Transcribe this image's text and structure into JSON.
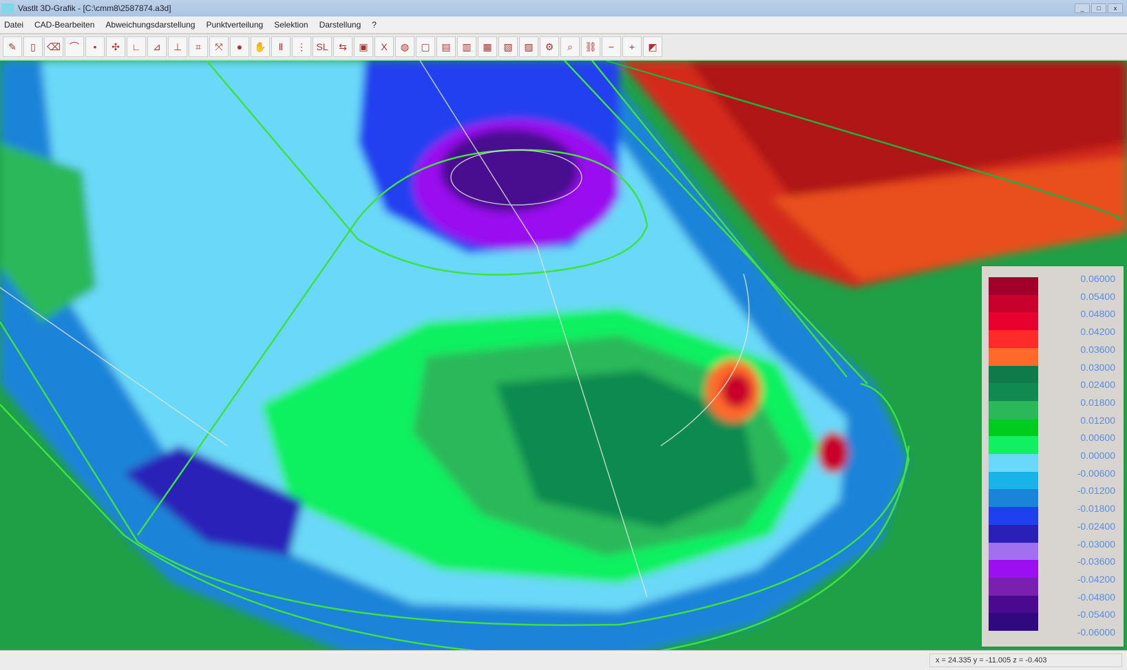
{
  "window": {
    "title": "Vastlt 3D-Grafik - [C:\\cmm8\\2587874.a3d]"
  },
  "menu": [
    "Datei",
    "CAD-Bearbeiten",
    "Abweichungsdarstellung",
    "Punktverteilung",
    "Selektion",
    "Darstellung",
    "?"
  ],
  "toolbar": [
    {
      "icon": "pen-icon",
      "glyph": "✎"
    },
    {
      "icon": "cylinder-icon",
      "glyph": "▯"
    },
    {
      "icon": "eraser-icon",
      "glyph": "⌫"
    },
    {
      "icon": "arc-icon",
      "glyph": "⌒"
    },
    {
      "icon": "point-icon",
      "glyph": "•"
    },
    {
      "icon": "select-icon",
      "glyph": "✣"
    },
    {
      "icon": "axis-icon",
      "glyph": "∟"
    },
    {
      "icon": "axis-icon",
      "glyph": "⊿"
    },
    {
      "icon": "axis-icon",
      "glyph": "⊥"
    },
    {
      "icon": "fit-icon",
      "glyph": "⌗"
    },
    {
      "icon": "zoom-icon",
      "glyph": "⤧"
    },
    {
      "icon": "dot-icon",
      "glyph": "●"
    },
    {
      "icon": "hand-icon",
      "glyph": "✋"
    },
    {
      "icon": "text-icon",
      "glyph": "Ⅱ"
    },
    {
      "icon": "grid-icon",
      "glyph": "⋮"
    },
    {
      "icon": "scale-icon",
      "glyph": "SL"
    },
    {
      "icon": "arrow-icon",
      "glyph": "⇆"
    },
    {
      "icon": "color-icon",
      "glyph": "▣"
    },
    {
      "icon": "cut-icon",
      "glyph": "X"
    },
    {
      "icon": "globe-icon",
      "glyph": "◍"
    },
    {
      "icon": "box-icon",
      "glyph": "▢"
    },
    {
      "icon": "box-icon",
      "glyph": "▤"
    },
    {
      "icon": "box-icon",
      "glyph": "▥"
    },
    {
      "icon": "box-icon",
      "glyph": "▦"
    },
    {
      "icon": "box-icon",
      "glyph": "▧"
    },
    {
      "icon": "box-icon",
      "glyph": "▨"
    },
    {
      "icon": "gear-icon",
      "glyph": "⚙"
    },
    {
      "icon": "search-icon",
      "glyph": "⌕"
    },
    {
      "icon": "link-icon",
      "glyph": "⛓"
    },
    {
      "icon": "minus-icon",
      "glyph": "−"
    },
    {
      "icon": "plus-icon",
      "glyph": "+"
    },
    {
      "icon": "layers-icon",
      "glyph": "◩"
    }
  ],
  "legend": {
    "labels": [
      "0.06000",
      "0.05400",
      "0.04800",
      "0.04200",
      "0.03600",
      "0.03000",
      "0.02400",
      "0.01800",
      "0.01200",
      "0.00600",
      "0.00000",
      "-0.00600",
      "-0.01200",
      "-0.01800",
      "-0.02400",
      "-0.03000",
      "-0.03600",
      "-0.04200",
      "-0.04800",
      "-0.05400",
      "-0.06000"
    ],
    "colors": [
      "#a0002a",
      "#c8002c",
      "#e8002e",
      "#ff2a2a",
      "#ff6a2a",
      "#0f7a4a",
      "#118a50",
      "#2ab85a",
      "#00cc20",
      "#10f060",
      "#6ad8f8",
      "#18b4e8",
      "#1a84d8",
      "#2040f0",
      "#2a20b8",
      "#a070f0",
      "#9a10f0",
      "#7a20b0",
      "#4a0a90",
      "#300880"
    ]
  },
  "status": {
    "coords": "x = 24.335  y = -11.005  z = -0.403"
  }
}
